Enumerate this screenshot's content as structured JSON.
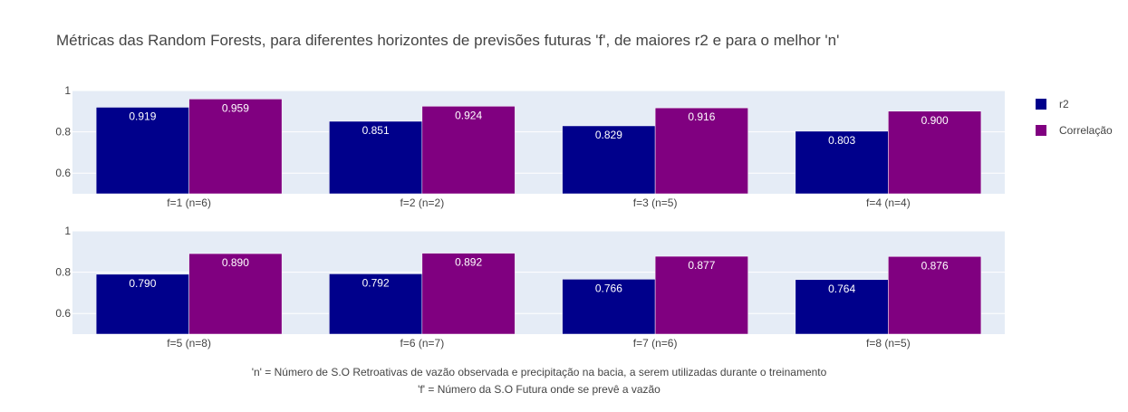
{
  "chart_data": {
    "type": "bar",
    "title": "Métricas das Random Forests, para diferentes horizontes de previsões futuras 'f', de maiores r2 e para o melhor 'n'",
    "colors": {
      "r2": "#00008b",
      "correlacao": "#800080",
      "plot_bg": "#e5ecf6",
      "grid": "#ffffff",
      "text": "#444444"
    },
    "series": [
      {
        "name": "r2",
        "color": "#00008b"
      },
      {
        "name": "Correlação",
        "color": "#800080"
      }
    ],
    "ylim": [
      0.5,
      1.0
    ],
    "yticks": [
      "0.6",
      "0.8",
      "1"
    ],
    "yticks_values": [
      0.6,
      0.8,
      1.0
    ],
    "legend_position": "right",
    "panels": [
      {
        "categories": [
          "f=1 (n=6)",
          "f=2 (n=2)",
          "f=3 (n=5)",
          "f=4 (n=4)"
        ],
        "r2": [
          0.919,
          0.851,
          0.829,
          0.803
        ],
        "correlacao": [
          0.959,
          0.924,
          0.916,
          0.9
        ],
        "r2_labels": [
          "0.919",
          "0.851",
          "0.829",
          "0.803"
        ],
        "correlacao_labels": [
          "0.959",
          "0.924",
          "0.916",
          "0.900"
        ]
      },
      {
        "categories": [
          "f=5 (n=8)",
          "f=6 (n=7)",
          "f=7 (n=6)",
          "f=8 (n=5)"
        ],
        "r2": [
          0.79,
          0.792,
          0.766,
          0.764
        ],
        "correlacao": [
          0.89,
          0.892,
          0.877,
          0.876
        ],
        "r2_labels": [
          "0.790",
          "0.792",
          "0.766",
          "0.764"
        ],
        "correlacao_labels": [
          "0.890",
          "0.892",
          "0.877",
          "0.876"
        ]
      }
    ],
    "annotations": [
      "'n' = Número de S.O Retroativas de vazão observada e precipitação na bacia, a serem utilizadas durante o treinamento",
      "'f' = Número da S.O Futura onde se prevê a vazão"
    ]
  }
}
